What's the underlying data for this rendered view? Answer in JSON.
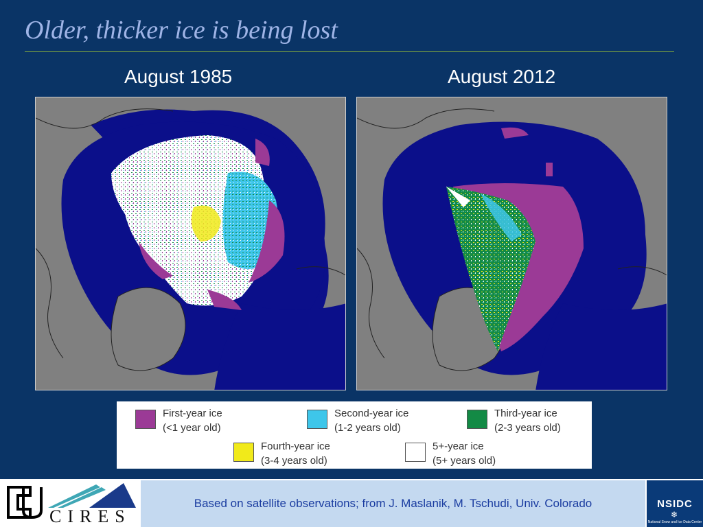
{
  "title": "Older, thicker ice is being lost",
  "maps": [
    {
      "label": "August 1985"
    },
    {
      "label": "August 2012"
    }
  ],
  "legend": [
    {
      "label": "First-year ice",
      "sub": "(<1 year old)",
      "color": "#9b3a96"
    },
    {
      "label": "Second-year ice",
      "sub": "(1-2 years old)",
      "color": "#3ec6ea"
    },
    {
      "label": "Third-year ice",
      "sub": "(2-3 years old)",
      "color": "#138a45"
    },
    {
      "label": "Fourth-year ice",
      "sub": "(3-4 years old)",
      "color": "#f1ea1a"
    },
    {
      "label": "5+-year ice",
      "sub": "(5+ years old)",
      "color": "#ffffff"
    }
  ],
  "footer": {
    "credit": "Based on satellite observations; from J. Maslanik, M. Tschudi, Univ. Colorado",
    "left_logo_text": "CIRES",
    "right_logo_text": "NSIDC",
    "right_logo_subtext": "National Snow and Ice Data Center"
  },
  "colors": {
    "background": "#0a3466",
    "ocean": "#0b0f8a",
    "land": "#808080",
    "title": "#9fb4e6",
    "rule": "#8db33a"
  }
}
